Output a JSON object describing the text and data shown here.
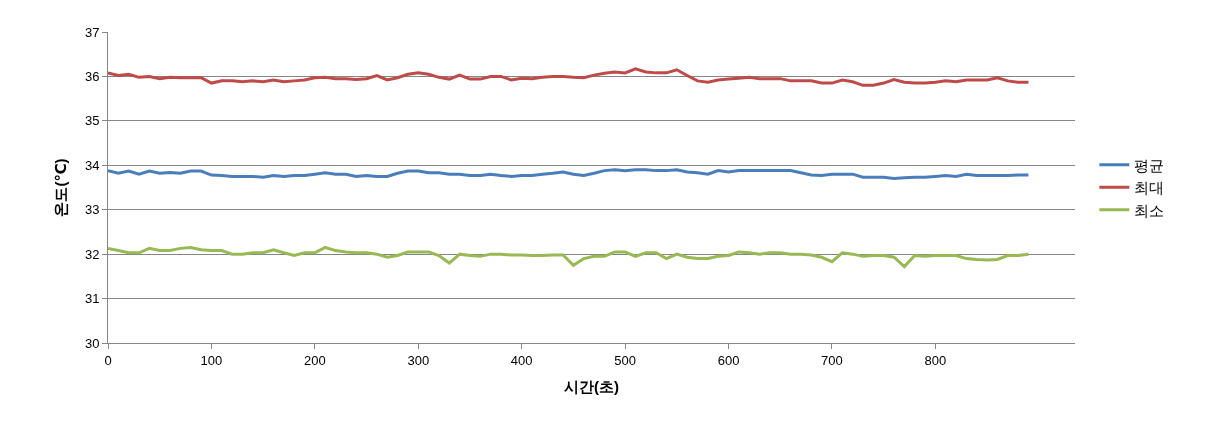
{
  "chart_data": {
    "type": "line",
    "xlabel": "시간(초)",
    "ylabel": "온도(℃)",
    "x": [
      0,
      10,
      20,
      30,
      40,
      50,
      60,
      70,
      80,
      90,
      100,
      110,
      120,
      130,
      140,
      150,
      160,
      170,
      180,
      190,
      200,
      210,
      220,
      230,
      240,
      250,
      260,
      270,
      280,
      290,
      300,
      310,
      320,
      330,
      340,
      350,
      360,
      370,
      380,
      390,
      400,
      410,
      420,
      430,
      440,
      450,
      460,
      470,
      480,
      490,
      500,
      510,
      520,
      530,
      540,
      550,
      560,
      570,
      580,
      590,
      600,
      610,
      620,
      630,
      640,
      650,
      660,
      670,
      680,
      690,
      700,
      710,
      720,
      730,
      740,
      750,
      760,
      770,
      780,
      790,
      800,
      810,
      820,
      830,
      840,
      850,
      860,
      870,
      880,
      890
    ],
    "series": [
      {
        "name": "평균",
        "color": "#4a7ebb",
        "values": [
          33.88,
          33.82,
          33.87,
          33.8,
          33.87,
          33.82,
          33.84,
          33.82,
          33.87,
          33.87,
          33.78,
          33.77,
          33.75,
          33.75,
          33.75,
          33.73,
          33.77,
          33.75,
          33.77,
          33.77,
          33.8,
          33.83,
          33.8,
          33.8,
          33.75,
          33.77,
          33.75,
          33.75,
          33.82,
          33.87,
          33.87,
          33.83,
          33.83,
          33.8,
          33.8,
          33.77,
          33.77,
          33.8,
          33.77,
          33.75,
          33.77,
          33.77,
          33.8,
          33.82,
          33.85,
          33.8,
          33.77,
          33.82,
          33.88,
          33.9,
          33.88,
          33.9,
          33.9,
          33.88,
          33.88,
          33.9,
          33.85,
          33.83,
          33.8,
          33.88,
          33.85,
          33.88,
          33.88,
          33.88,
          33.88,
          33.88,
          33.88,
          33.83,
          33.78,
          33.77,
          33.8,
          33.8,
          33.8,
          33.73,
          33.73,
          33.73,
          33.7,
          33.72,
          33.73,
          33.73,
          33.75,
          33.77,
          33.75,
          33.8,
          33.77,
          33.77,
          33.77,
          33.77,
          33.78,
          33.78
        ]
      },
      {
        "name": "최대",
        "color": "#be4b48",
        "values": [
          36.08,
          36.02,
          36.05,
          35.98,
          36.0,
          35.95,
          35.98,
          35.97,
          35.97,
          35.97,
          35.85,
          35.9,
          35.9,
          35.88,
          35.9,
          35.88,
          35.92,
          35.88,
          35.9,
          35.92,
          35.97,
          35.98,
          35.95,
          35.95,
          35.93,
          35.95,
          36.02,
          35.92,
          35.97,
          36.05,
          36.08,
          36.05,
          35.98,
          35.94,
          36.03,
          35.94,
          35.94,
          36.0,
          36.0,
          35.92,
          35.96,
          35.95,
          35.98,
          36.0,
          36.0,
          35.98,
          35.97,
          36.03,
          36.07,
          36.1,
          36.08,
          36.17,
          36.1,
          36.08,
          36.08,
          36.15,
          36.02,
          35.9,
          35.87,
          35.92,
          35.94,
          35.96,
          35.98,
          35.95,
          35.95,
          35.95,
          35.9,
          35.9,
          35.9,
          35.85,
          35.85,
          35.92,
          35.88,
          35.8,
          35.8,
          35.85,
          35.93,
          35.87,
          35.85,
          35.85,
          35.87,
          35.9,
          35.88,
          35.92,
          35.92,
          35.92,
          35.97,
          35.9,
          35.87,
          35.87
        ]
      },
      {
        "name": "최소",
        "color": "#98b954",
        "values": [
          32.13,
          32.08,
          32.03,
          32.03,
          32.13,
          32.08,
          32.08,
          32.13,
          32.15,
          32.1,
          32.08,
          32.08,
          32.0,
          32.0,
          32.03,
          32.03,
          32.1,
          32.03,
          31.97,
          32.03,
          32.03,
          32.15,
          32.08,
          32.05,
          32.03,
          32.03,
          32.0,
          31.93,
          31.97,
          32.05,
          32.05,
          32.05,
          31.97,
          31.8,
          32.0,
          31.97,
          31.95,
          32.0,
          32.0,
          31.98,
          31.98,
          31.97,
          31.97,
          31.98,
          31.98,
          31.75,
          31.9,
          31.95,
          31.95,
          32.05,
          32.05,
          31.95,
          32.03,
          32.03,
          31.9,
          32.0,
          31.93,
          31.9,
          31.9,
          31.95,
          31.97,
          32.05,
          32.03,
          32.0,
          32.03,
          32.03,
          32.0,
          32.0,
          31.98,
          31.93,
          31.83,
          32.03,
          32.0,
          31.95,
          31.97,
          31.97,
          31.93,
          31.72,
          31.97,
          31.95,
          31.97,
          31.97,
          31.97,
          31.9,
          31.88,
          31.87,
          31.88,
          31.97,
          31.97,
          32.0
        ]
      }
    ],
    "xlim": [
      0,
      935
    ],
    "xticks": [
      0,
      100,
      200,
      300,
      400,
      500,
      600,
      700,
      800
    ],
    "ylim": [
      30,
      37
    ],
    "yticks": [
      30,
      31,
      32,
      33,
      34,
      35,
      36,
      37
    ],
    "grid": "y",
    "legend": "right",
    "marker": "none",
    "line_style": "solid"
  }
}
